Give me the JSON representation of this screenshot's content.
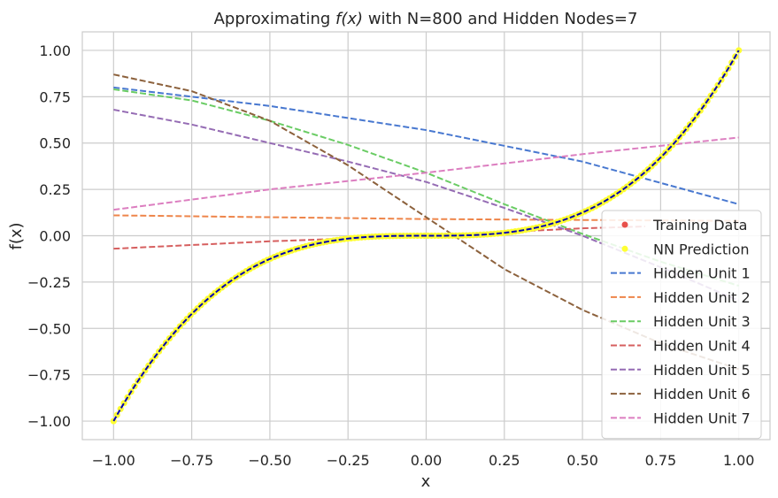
{
  "chart_data": {
    "type": "line",
    "title_prefix": "Approximating ",
    "title_math": "f(x)",
    "title_suffix": " with N=800 and Hidden Nodes=7",
    "xlabel": "x",
    "ylabel": "f(x)",
    "xlim": [
      -1.1,
      1.1
    ],
    "ylim": [
      -1.1,
      1.1
    ],
    "xticks": [
      -1.0,
      -0.75,
      -0.5,
      -0.25,
      0.0,
      0.25,
      0.5,
      0.75,
      1.0
    ],
    "xtick_labels": [
      "−1.00",
      "−0.75",
      "−0.50",
      "−0.25",
      "0.00",
      "0.25",
      "0.50",
      "0.75",
      "1.00"
    ],
    "yticks": [
      -1.0,
      -0.75,
      -0.5,
      -0.25,
      0.0,
      0.25,
      0.5,
      0.75,
      1.0
    ],
    "ytick_labels": [
      "−1.00",
      "−0.75",
      "−0.50",
      "−0.25",
      "0.00",
      "0.25",
      "0.50",
      "0.75",
      "1.00"
    ],
    "grid": true,
    "legend_position": "lower-right",
    "training_data": {
      "name": "Training Data",
      "color": "#e8504a",
      "function": "x^3",
      "x_range": [
        -1.0,
        1.0
      ]
    },
    "prediction": {
      "name": "NN Prediction",
      "marker_color": "#ffff33",
      "line_color": "#0000b3",
      "function": "x^3",
      "x_range": [
        -1.0,
        1.0
      ]
    },
    "hidden_units": [
      {
        "name": "Hidden Unit 1",
        "color": "#4878d0",
        "x": [
          -1.0,
          -0.5,
          0.0,
          0.5,
          1.0
        ],
        "y": [
          0.8,
          0.7,
          0.57,
          0.4,
          0.17
        ]
      },
      {
        "name": "Hidden Unit 2",
        "color": "#ee854a",
        "x": [
          -1.0,
          -0.5,
          0.0,
          0.5,
          1.0
        ],
        "y": [
          0.11,
          0.1,
          0.09,
          0.085,
          0.08
        ]
      },
      {
        "name": "Hidden Unit 3",
        "color": "#6acc64",
        "x": [
          -1.0,
          -0.75,
          -0.5,
          -0.25,
          0.0,
          0.25,
          0.5,
          0.75,
          1.0
        ],
        "y": [
          0.79,
          0.73,
          0.62,
          0.49,
          0.34,
          0.17,
          0.01,
          -0.14,
          -0.27
        ]
      },
      {
        "name": "Hidden Unit 4",
        "color": "#d65f5f",
        "x": [
          -1.0,
          -0.5,
          0.0,
          0.5,
          0.7
        ],
        "y": [
          -0.07,
          -0.03,
          0.0,
          0.04,
          0.05
        ]
      },
      {
        "name": "Hidden Unit 5",
        "color": "#956cb4",
        "x": [
          -1.0,
          -0.75,
          -0.5,
          -0.25,
          0.0,
          0.25,
          0.5,
          0.75,
          1.0
        ],
        "y": [
          0.68,
          0.6,
          0.5,
          0.4,
          0.29,
          0.15,
          0.0,
          -0.17,
          -0.35
        ]
      },
      {
        "name": "Hidden Unit 6",
        "color": "#8c613c",
        "x": [
          -1.0,
          -0.75,
          -0.5,
          -0.25,
          0.0,
          0.25,
          0.5,
          0.75,
          1.0
        ],
        "y": [
          0.87,
          0.78,
          0.62,
          0.38,
          0.1,
          -0.18,
          -0.4,
          -0.58,
          -0.72
        ]
      },
      {
        "name": "Hidden Unit 7",
        "color": "#dc7ec0",
        "x": [
          -1.0,
          -0.5,
          0.0,
          0.5,
          1.0
        ],
        "y": [
          0.14,
          0.25,
          0.34,
          0.44,
          0.53
        ]
      }
    ]
  }
}
